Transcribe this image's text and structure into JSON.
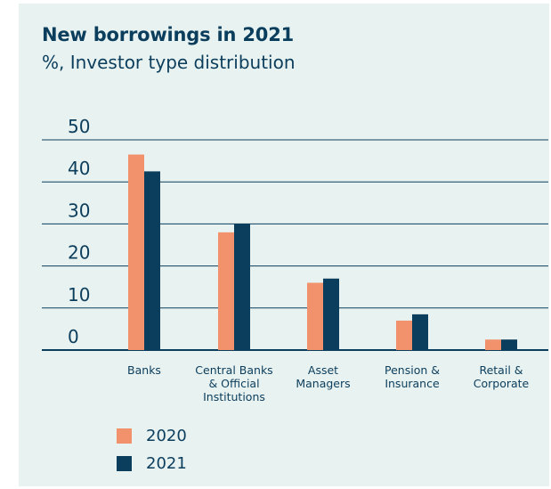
{
  "title": "New borrowings in 2021",
  "subtitle": "%, Investor type distribution",
  "colors": {
    "background": "#e8f2f0",
    "series_2020": "#f2926c",
    "series_2021": "#0b3d5c",
    "text": "#0b3d5c",
    "grid": "#0b3d5c"
  },
  "chart_data": {
    "type": "bar",
    "title": "New borrowings in 2021",
    "subtitle": "%, Investor type distribution",
    "categories": [
      [
        "Banks"
      ],
      [
        "Central Banks",
        "& Official",
        "Institutions"
      ],
      [
        "Asset",
        "Managers"
      ],
      [
        "Pension &",
        "Insurance"
      ],
      [
        "Retail &",
        "Corporate"
      ]
    ],
    "series": [
      {
        "name": "2020",
        "color": "#f2926c",
        "values": [
          46.5,
          28,
          16,
          7,
          2.5
        ]
      },
      {
        "name": "2021",
        "color": "#0b3d5c",
        "values": [
          42.5,
          30,
          17,
          8.5,
          2.5
        ]
      }
    ],
    "yticks": [
      "0",
      "10",
      "20",
      "30",
      "40",
      "50"
    ],
    "ylim": [
      0,
      50
    ],
    "grid": true,
    "legend_position": "bottom-left"
  }
}
